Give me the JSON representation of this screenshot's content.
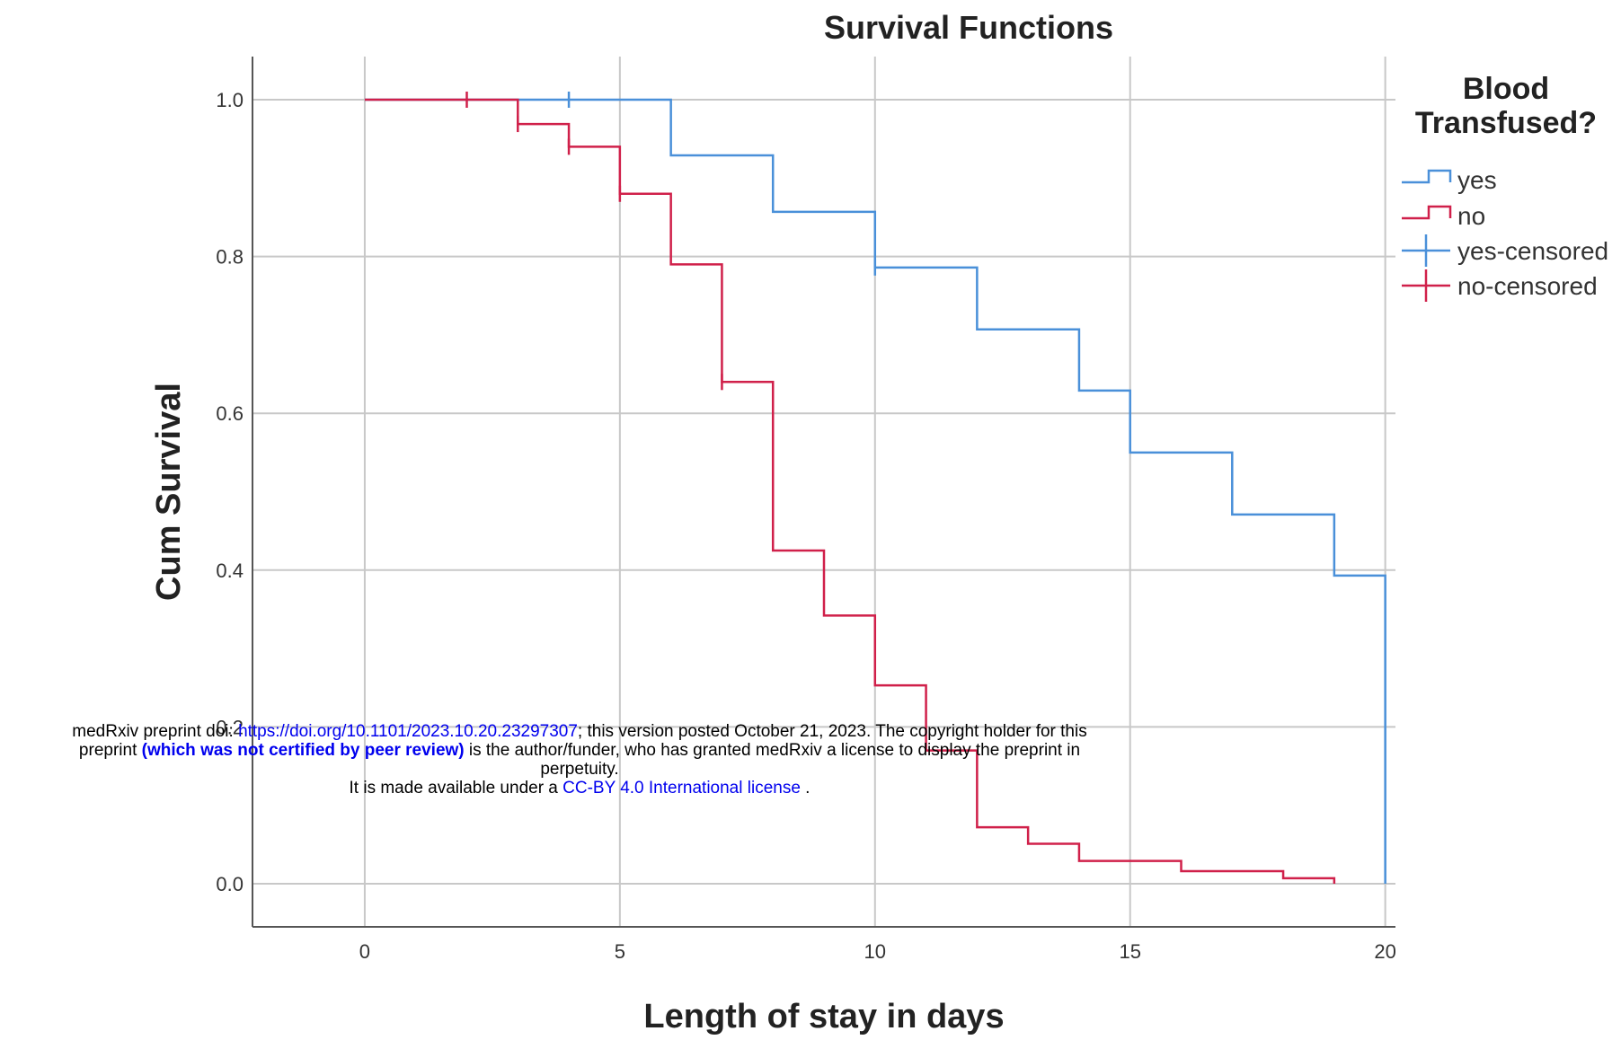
{
  "chart_data": {
    "type": "line",
    "step": true,
    "title": "Survival Functions",
    "xlabel": "Length of stay in days",
    "ylabel": "Cum Survival",
    "xlim": [
      -2.2,
      20.2
    ],
    "ylim": [
      -0.055,
      1.055
    ],
    "xticks": [
      0,
      5,
      10,
      15,
      20
    ],
    "yticks": [
      0.0,
      0.2,
      0.4,
      0.6,
      0.8,
      1.0
    ],
    "ytick_labels": [
      "0.0",
      "0.2",
      "0.4",
      "0.6",
      "0.8",
      "1.0"
    ],
    "grid": true,
    "legend": {
      "title_lines": [
        "Blood",
        "Transfused?"
      ],
      "position": "right",
      "entries": [
        "yes",
        "no",
        "yes-censored",
        "no-censored"
      ]
    },
    "series": [
      {
        "name": "yes",
        "color": "#4a90d9",
        "steps": [
          [
            0,
            1.0
          ],
          [
            6,
            0.929
          ],
          [
            8,
            0.857
          ],
          [
            10,
            0.786
          ],
          [
            12,
            0.707
          ],
          [
            14,
            0.629
          ],
          [
            15,
            0.55
          ],
          [
            17,
            0.471
          ],
          [
            19,
            0.393
          ],
          [
            20,
            0.0
          ]
        ],
        "censored": [
          [
            4,
            1.0
          ],
          [
            10,
            0.786
          ]
        ]
      },
      {
        "name": "no",
        "color": "#d0204a",
        "steps": [
          [
            0,
            1.0
          ],
          [
            3,
            0.969
          ],
          [
            4,
            0.94
          ],
          [
            5,
            0.88
          ],
          [
            6,
            0.79
          ],
          [
            7,
            0.64
          ],
          [
            8,
            0.425
          ],
          [
            9,
            0.342
          ],
          [
            10,
            0.253
          ],
          [
            11,
            0.17
          ],
          [
            12,
            0.072
          ],
          [
            13,
            0.051
          ],
          [
            14,
            0.029
          ],
          [
            16,
            0.016
          ],
          [
            18,
            0.007
          ],
          [
            19,
            0.0
          ]
        ],
        "censored": [
          [
            2,
            1.0
          ],
          [
            3,
            0.969
          ],
          [
            4,
            0.94
          ],
          [
            5,
            0.88
          ],
          [
            7,
            0.64
          ]
        ]
      }
    ]
  },
  "notice": {
    "line1_prefix": "medRxiv preprint doi: ",
    "doi_link": "https://doi.org/10.1101/2023.10.20.23297307",
    "line1_suffix": "; this version posted October 21, 2023. The copyright holder for this",
    "line2_prefix": "preprint ",
    "line2_bold": "(which was not certified by peer review)",
    "line2_suffix": " is the author/funder, who has granted medRxiv a license to display the preprint in",
    "line3": "perpetuity.",
    "line4_prefix": "It is made available under a ",
    "license_link": "CC-BY 4.0 International license",
    "line4_suffix": " ."
  }
}
